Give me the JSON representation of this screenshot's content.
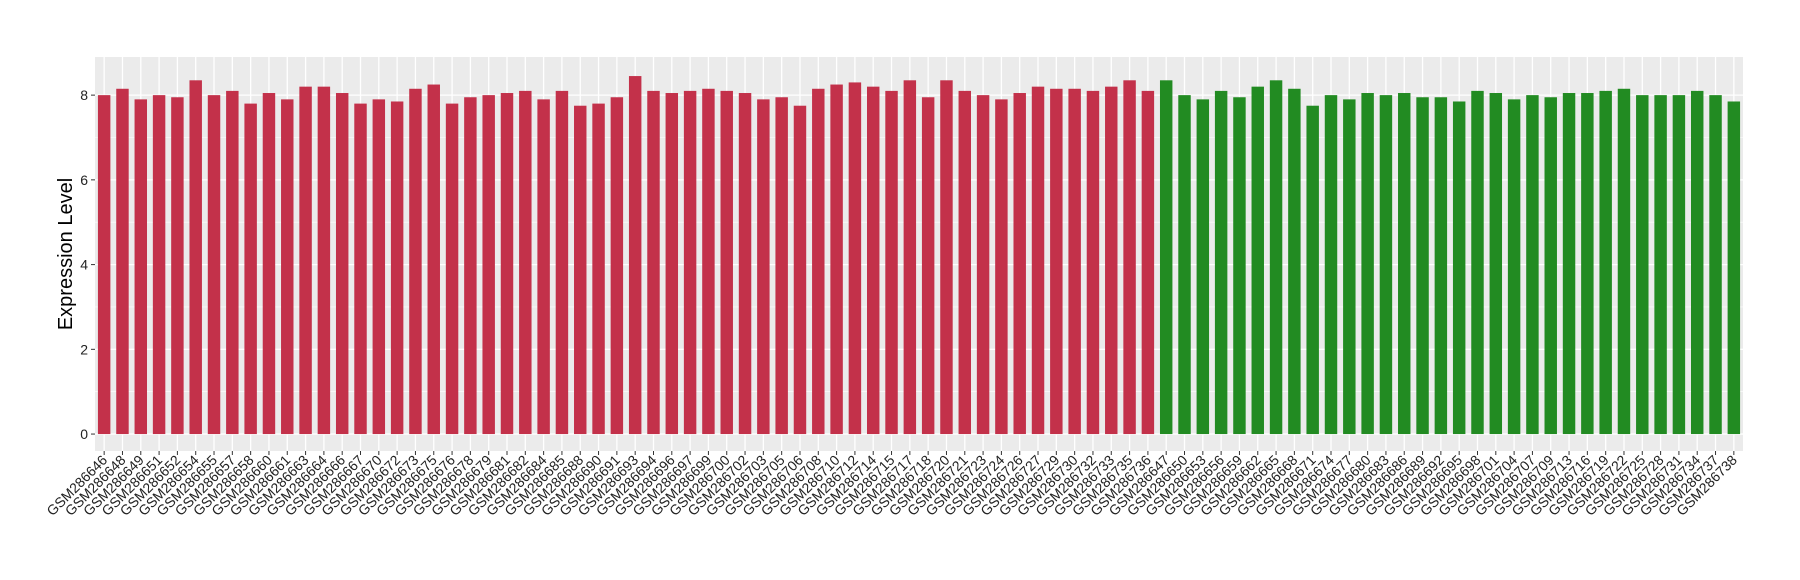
{
  "chart_data": {
    "type": "bar",
    "title": "",
    "xlabel": "",
    "ylabel": "Expression Level",
    "ylim": [
      -0.4,
      8.9
    ],
    "yticks": [
      0,
      2,
      4,
      6,
      8
    ],
    "grid": true,
    "legend": "none",
    "colors": {
      "group1": "#C3314A",
      "group2": "#228B22",
      "panel": "#EBEBEB"
    },
    "categories": [
      "GSM286646",
      "GSM286648",
      "GSM286649",
      "GSM286651",
      "GSM286652",
      "GSM286654",
      "GSM286655",
      "GSM286657",
      "GSM286658",
      "GSM286660",
      "GSM286661",
      "GSM286663",
      "GSM286664",
      "GSM286666",
      "GSM286667",
      "GSM286670",
      "GSM286672",
      "GSM286673",
      "GSM286675",
      "GSM286676",
      "GSM286678",
      "GSM286679",
      "GSM286681",
      "GSM286682",
      "GSM286684",
      "GSM286685",
      "GSM286688",
      "GSM286690",
      "GSM286691",
      "GSM286693",
      "GSM286694",
      "GSM286696",
      "GSM286697",
      "GSM286699",
      "GSM286700",
      "GSM286702",
      "GSM286703",
      "GSM286705",
      "GSM286706",
      "GSM286708",
      "GSM286710",
      "GSM286712",
      "GSM286714",
      "GSM286715",
      "GSM286717",
      "GSM286718",
      "GSM286720",
      "GSM286721",
      "GSM286723",
      "GSM286724",
      "GSM286726",
      "GSM286727",
      "GSM286729",
      "GSM286730",
      "GSM286732",
      "GSM286733",
      "GSM286735",
      "GSM286736",
      "GSM286647",
      "GSM286650",
      "GSM286653",
      "GSM286656",
      "GSM286659",
      "GSM286662",
      "GSM286665",
      "GSM286668",
      "GSM286671",
      "GSM286674",
      "GSM286677",
      "GSM286680",
      "GSM286683",
      "GSM286686",
      "GSM286689",
      "GSM286692",
      "GSM286695",
      "GSM286698",
      "GSM286701",
      "GSM286704",
      "GSM286707",
      "GSM286709",
      "GSM286713",
      "GSM286716",
      "GSM286719",
      "GSM286722",
      "GSM286725",
      "GSM286728",
      "GSM286731",
      "GSM286734",
      "GSM286737",
      "GSM286738"
    ],
    "values": [
      8.0,
      8.15,
      7.9,
      8.0,
      7.95,
      8.35,
      8.0,
      8.1,
      7.8,
      8.05,
      7.9,
      8.2,
      8.2,
      8.05,
      7.8,
      7.9,
      7.85,
      8.15,
      8.25,
      7.8,
      7.95,
      8.0,
      8.05,
      8.1,
      7.9,
      8.1,
      7.75,
      7.8,
      7.95,
      8.45,
      8.1,
      8.05,
      8.1,
      8.15,
      8.1,
      8.05,
      7.9,
      7.95,
      7.75,
      8.15,
      8.25,
      8.3,
      8.2,
      8.1,
      8.35,
      7.95,
      8.35,
      8.1,
      8.0,
      7.9,
      8.05,
      8.2,
      8.15,
      8.15,
      8.1,
      8.2,
      8.35,
      8.1,
      8.35,
      8.0,
      7.9,
      8.1,
      7.95,
      8.2,
      8.35,
      8.15,
      7.75,
      8.0,
      7.9,
      8.05,
      8.0,
      8.05,
      7.95,
      7.95,
      7.85,
      8.1,
      8.05,
      7.9,
      8.0,
      7.95,
      8.05,
      8.05,
      8.1,
      8.15,
      8.0,
      8.0,
      8.0,
      8.1,
      8.0,
      7.85
    ],
    "groups": [
      "group1",
      "group1",
      "group1",
      "group1",
      "group1",
      "group1",
      "group1",
      "group1",
      "group1",
      "group1",
      "group1",
      "group1",
      "group1",
      "group1",
      "group1",
      "group1",
      "group1",
      "group1",
      "group1",
      "group1",
      "group1",
      "group1",
      "group1",
      "group1",
      "group1",
      "group1",
      "group1",
      "group1",
      "group1",
      "group1",
      "group1",
      "group1",
      "group1",
      "group1",
      "group1",
      "group1",
      "group1",
      "group1",
      "group1",
      "group1",
      "group1",
      "group1",
      "group1",
      "group1",
      "group1",
      "group1",
      "group1",
      "group1",
      "group1",
      "group1",
      "group1",
      "group1",
      "group1",
      "group1",
      "group1",
      "group1",
      "group1",
      "group1",
      "group2",
      "group2",
      "group2",
      "group2",
      "group2",
      "group2",
      "group2",
      "group2",
      "group2",
      "group2",
      "group2",
      "group2",
      "group2",
      "group2",
      "group2",
      "group2",
      "group2",
      "group2",
      "group2",
      "group2",
      "group2",
      "group2",
      "group2",
      "group2",
      "group2",
      "group2",
      "group2",
      "group2",
      "group2",
      "group2",
      "group2",
      "group2"
    ]
  }
}
